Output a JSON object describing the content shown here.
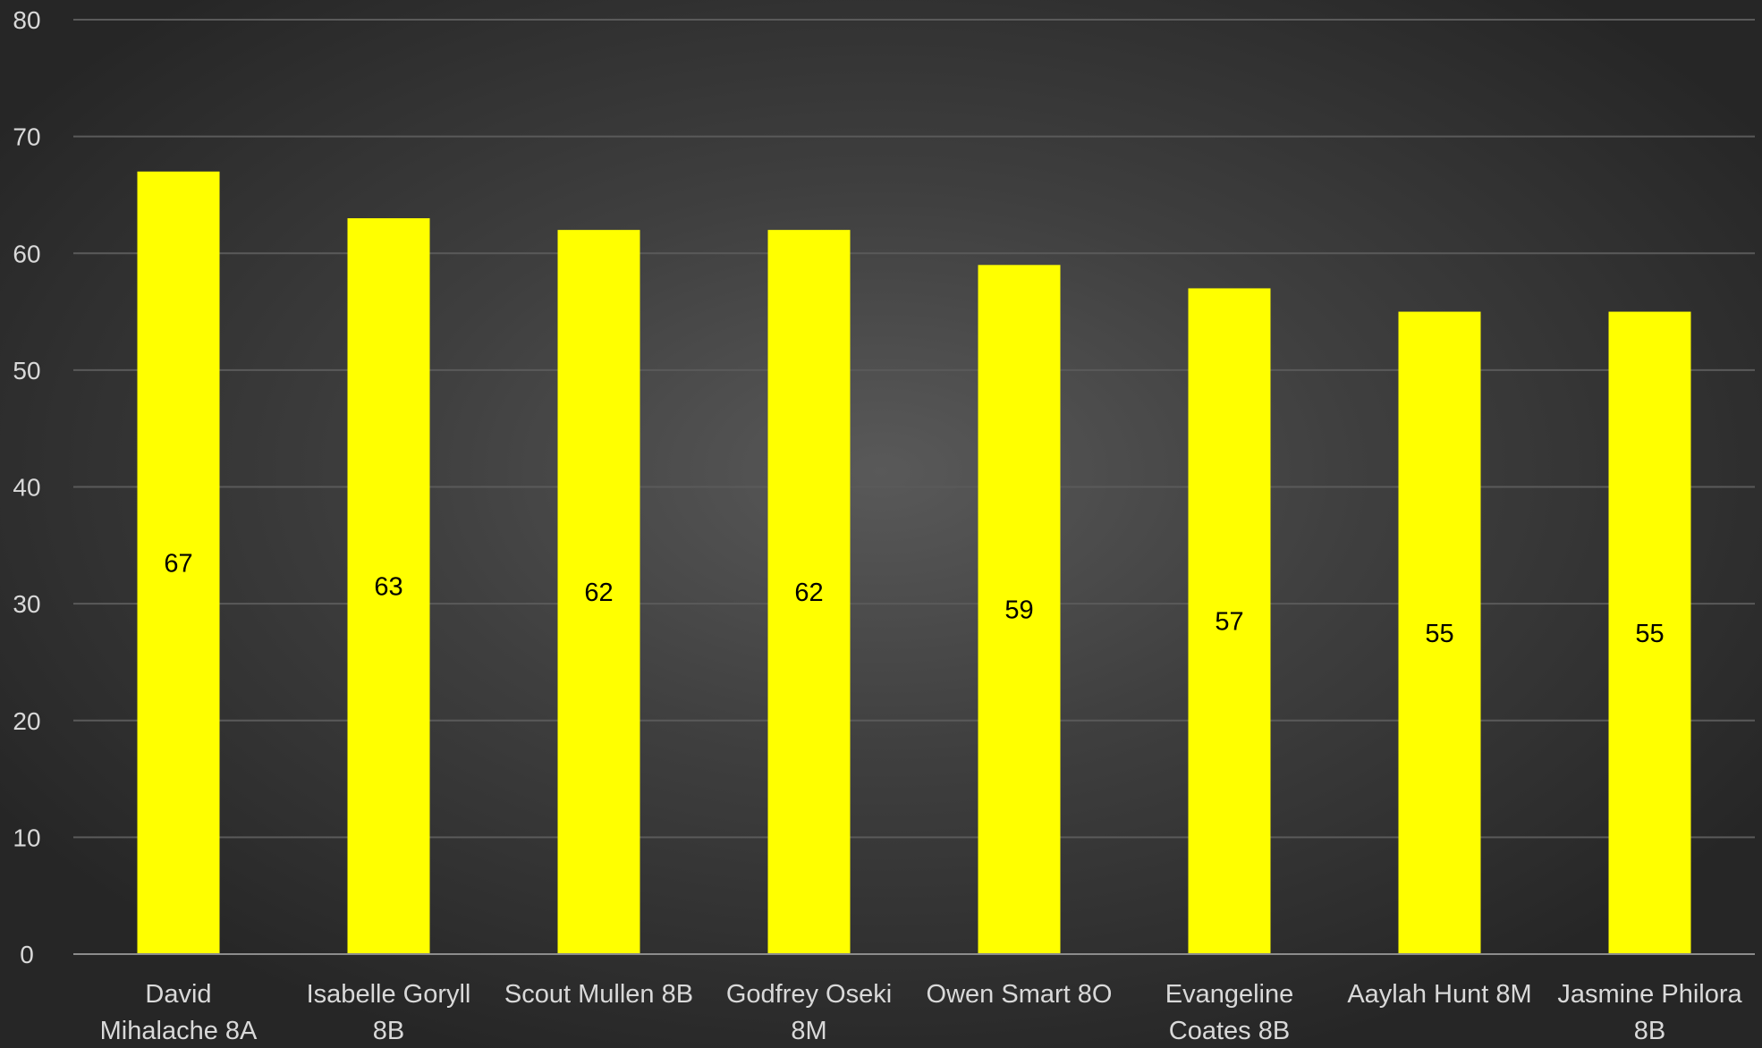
{
  "chart_data": {
    "type": "bar",
    "title": "",
    "xlabel": "",
    "ylabel": "",
    "categories": [
      [
        "David",
        "Mihalache 8A"
      ],
      [
        "Isabelle Goryll",
        "8B"
      ],
      [
        "Scout Mullen 8B"
      ],
      [
        "Godfrey Oseki",
        "8M"
      ],
      [
        "Owen Smart 8O"
      ],
      [
        "Evangeline",
        "Coates 8B"
      ],
      [
        "Aaylah Hunt 8M"
      ],
      [
        "Jasmine Philora",
        "8B"
      ]
    ],
    "values": [
      67,
      63,
      62,
      62,
      59,
      57,
      55,
      55
    ],
    "ylim": [
      0,
      80
    ],
    "yticks": [
      0,
      10,
      20,
      30,
      40,
      50,
      60,
      70,
      80
    ],
    "grid": true,
    "legend": "none",
    "bar_color": "#ffff00",
    "gridline_color": "#5a5a5a",
    "axis_color": "#8c8c8c"
  }
}
